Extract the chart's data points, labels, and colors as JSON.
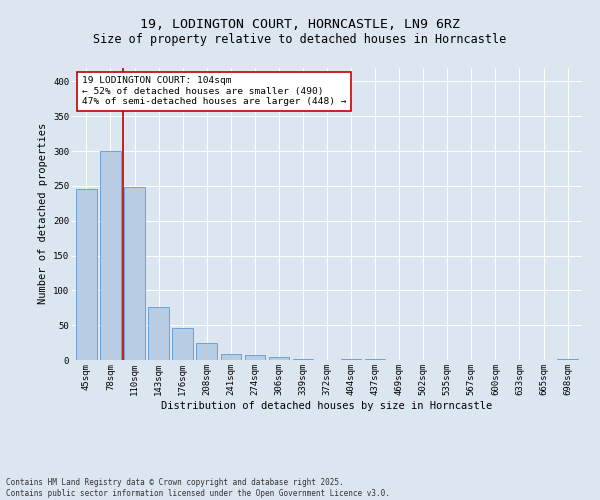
{
  "title1": "19, LODINGTON COURT, HORNCASTLE, LN9 6RZ",
  "title2": "Size of property relative to detached houses in Horncastle",
  "xlabel": "Distribution of detached houses by size in Horncastle",
  "ylabel": "Number of detached properties",
  "categories": [
    "45sqm",
    "78sqm",
    "110sqm",
    "143sqm",
    "176sqm",
    "208sqm",
    "241sqm",
    "274sqm",
    "306sqm",
    "339sqm",
    "372sqm",
    "404sqm",
    "437sqm",
    "469sqm",
    "502sqm",
    "535sqm",
    "567sqm",
    "600sqm",
    "633sqm",
    "665sqm",
    "698sqm"
  ],
  "values": [
    245,
    300,
    248,
    76,
    46,
    24,
    9,
    7,
    5,
    2,
    0,
    2,
    2,
    0,
    0,
    0,
    0,
    0,
    0,
    0,
    2
  ],
  "bar_color": "#b8cce4",
  "bar_edge_color": "#5b9bd5",
  "vline_x": 1.5,
  "vline_color": "#c00000",
  "annotation_text": "19 LODINGTON COURT: 104sqm\n← 52% of detached houses are smaller (490)\n47% of semi-detached houses are larger (448) →",
  "annotation_box_color": "#ffffff",
  "annotation_box_edge": "#c00000",
  "ylim": [
    0,
    420
  ],
  "yticks": [
    0,
    50,
    100,
    150,
    200,
    250,
    300,
    350,
    400
  ],
  "bg_color": "#dce6f1",
  "plot_bg": "#dce6f1",
  "footer": "Contains HM Land Registry data © Crown copyright and database right 2025.\nContains public sector information licensed under the Open Government Licence v3.0.",
  "title_fontsize": 9.5,
  "subtitle_fontsize": 8.5,
  "tick_fontsize": 6.5,
  "label_fontsize": 7.5,
  "annotation_fontsize": 6.8,
  "footer_fontsize": 5.5
}
